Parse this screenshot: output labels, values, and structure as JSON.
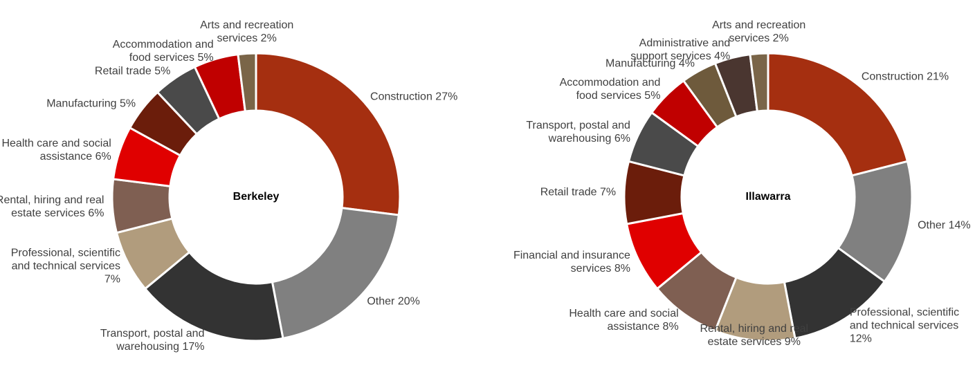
{
  "chart_data": [
    {
      "type": "pie",
      "title": "Berkeley",
      "categories": [
        "Construction",
        "Other",
        "Transport, postal and warehousing",
        "Professional, scientific and technical services",
        "Rental, hiring and real estate services",
        "Health care and social assistance",
        "Manufacturing",
        "Retail trade",
        "Accommodation and food services",
        "Arts and recreation services"
      ],
      "values": [
        27,
        20,
        17,
        7,
        6,
        6,
        5,
        5,
        5,
        2
      ],
      "value_labels": [
        "27%",
        "20%",
        "17%",
        "7%",
        "6%",
        "6%",
        "5%",
        "5%",
        "5%",
        "2%"
      ],
      "colors": [
        "#a52f10",
        "#808080",
        "#333333",
        "#b19c7d",
        "#7f5f52",
        "#e00000",
        "#6b1d0b",
        "#4a4a4a",
        "#c00000",
        "#7a6548"
      ]
    },
    {
      "type": "pie",
      "title": "Illawarra",
      "categories": [
        "Construction",
        "Other",
        "Professional, scientific and technical services",
        "Rental, hiring and real estate services",
        "Health care and social assistance",
        "Financial and insurance services",
        "Retail trade",
        "Transport, postal and warehousing",
        "Accommodation and food services",
        "Manufacturing",
        "Administrative and support services",
        "Arts and recreation services"
      ],
      "values": [
        21,
        14,
        12,
        9,
        8,
        8,
        7,
        6,
        5,
        4,
        4,
        2
      ],
      "value_labels": [
        "21%",
        "14%",
        "12%",
        "9%",
        "8%",
        "8%",
        "7%",
        "6%",
        "5%",
        "4%",
        "4%",
        "2%"
      ],
      "colors": [
        "#a52f10",
        "#808080",
        "#333333",
        "#b19c7d",
        "#7f5f52",
        "#e00000",
        "#6b1d0b",
        "#4a4a4a",
        "#c00000",
        "#6e5a3c",
        "#4a3630",
        "#7a6548"
      ]
    }
  ]
}
